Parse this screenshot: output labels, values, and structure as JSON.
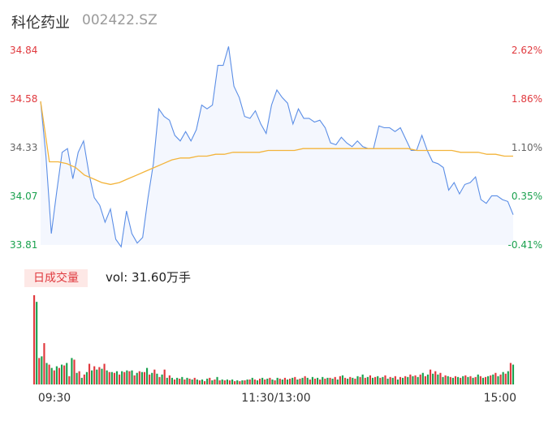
{
  "header": {
    "name": "科伦药业",
    "code": "002422.SZ"
  },
  "volume_panel": {
    "badge": "日成交量",
    "vol_text": "vol: 31.60万手"
  },
  "chart_data": {
    "type": "line",
    "price_axis": {
      "left_labels": [
        "34.84",
        "34.58",
        "34.33",
        "34.07",
        "33.81"
      ],
      "right_labels": [
        "2.62%",
        "1.86%",
        "1.10%",
        "0.35%",
        "-0.41%"
      ],
      "min": 33.81,
      "max": 34.84
    },
    "x_labels": [
      "09:30",
      "11:30/13:00",
      "15:00"
    ],
    "series": [
      {
        "type": "line",
        "color": "#5b8ee6",
        "values": [
          34.57,
          34.28,
          33.87,
          34.09,
          34.3,
          34.32,
          34.16,
          34.3,
          34.36,
          34.19,
          34.06,
          34.02,
          33.93,
          34.0,
          33.84,
          33.8,
          33.99,
          33.87,
          33.82,
          33.85,
          34.06,
          34.24,
          34.53,
          34.49,
          34.47,
          34.39,
          34.36,
          34.41,
          34.36,
          34.42,
          34.55,
          34.53,
          34.55,
          34.76,
          34.76,
          34.86,
          34.65,
          34.59,
          34.49,
          34.48,
          34.52,
          34.45,
          34.4,
          34.55,
          34.63,
          34.59,
          34.56,
          34.45,
          34.53,
          34.48,
          34.48,
          34.46,
          34.47,
          34.43,
          34.35,
          34.34,
          34.38,
          34.35,
          34.33,
          34.36,
          34.33,
          34.32,
          34.32,
          34.44,
          34.43,
          34.43,
          34.41,
          34.43,
          34.37,
          34.31,
          34.31,
          34.39,
          34.31,
          34.25,
          34.24,
          34.22,
          34.1,
          34.14,
          34.08,
          34.13,
          34.14,
          34.17,
          34.05,
          34.03,
          34.07,
          34.07,
          34.05,
          34.04,
          33.97
        ]
      },
      {
        "type": "line",
        "color": "#f3b43b",
        "values": [
          34.57,
          34.25,
          34.25,
          34.24,
          34.22,
          34.18,
          34.16,
          34.14,
          34.13,
          34.14,
          34.16,
          34.18,
          34.2,
          34.22,
          34.24,
          34.26,
          34.27,
          34.27,
          34.28,
          34.28,
          34.29,
          34.29,
          34.3,
          34.3,
          34.3,
          34.3,
          34.31,
          34.31,
          34.31,
          34.31,
          34.32,
          34.32,
          34.32,
          34.32,
          34.32,
          34.32,
          34.32,
          34.32,
          34.32,
          34.32,
          34.32,
          34.32,
          34.32,
          34.31,
          34.31,
          34.31,
          34.31,
          34.31,
          34.3,
          34.3,
          34.3,
          34.29,
          34.29,
          34.28,
          34.28
        ]
      }
    ],
    "volume": {
      "colors": {
        "up": "#e0393e",
        "down": "#1aa14e"
      },
      "bars": [
        [
          108,
          0
        ],
        [
          100,
          1
        ],
        [
          32,
          0
        ],
        [
          34,
          1
        ],
        [
          50,
          0
        ],
        [
          26,
          1
        ],
        [
          24,
          0
        ],
        [
          20,
          1
        ],
        [
          17,
          0
        ],
        [
          22,
          1
        ],
        [
          20,
          0
        ],
        [
          24,
          1
        ],
        [
          23,
          0
        ],
        [
          26,
          1
        ],
        [
          10,
          0
        ],
        [
          32,
          1
        ],
        [
          30,
          0
        ],
        [
          14,
          1
        ],
        [
          16,
          0
        ],
        [
          8,
          1
        ],
        [
          12,
          0
        ],
        [
          15,
          1
        ],
        [
          25,
          0
        ],
        [
          17,
          1
        ],
        [
          22,
          0
        ],
        [
          18,
          1
        ],
        [
          21,
          0
        ],
        [
          19,
          1
        ],
        [
          25,
          0
        ],
        [
          17,
          1
        ],
        [
          15,
          0
        ],
        [
          15,
          1
        ],
        [
          14,
          0
        ],
        [
          16,
          1
        ],
        [
          12,
          0
        ],
        [
          16,
          1
        ],
        [
          15,
          0
        ],
        [
          17,
          1
        ],
        [
          16,
          0
        ],
        [
          17,
          1
        ],
        [
          11,
          0
        ],
        [
          14,
          1
        ],
        [
          16,
          0
        ],
        [
          15,
          1
        ],
        [
          15,
          0
        ],
        [
          20,
          1
        ],
        [
          12,
          0
        ],
        [
          14,
          1
        ],
        [
          18,
          0
        ],
        [
          13,
          1
        ],
        [
          9,
          0
        ],
        [
          12,
          1
        ],
        [
          18,
          0
        ],
        [
          8,
          1
        ],
        [
          11,
          0
        ],
        [
          8,
          1
        ],
        [
          6,
          0
        ],
        [
          8,
          1
        ],
        [
          7,
          0
        ],
        [
          9,
          1
        ],
        [
          6,
          0
        ],
        [
          8,
          1
        ],
        [
          7,
          0
        ],
        [
          6,
          1
        ],
        [
          8,
          0
        ],
        [
          6,
          1
        ],
        [
          5,
          0
        ],
        [
          6,
          1
        ],
        [
          4,
          0
        ],
        [
          7,
          1
        ],
        [
          8,
          0
        ],
        [
          5,
          1
        ],
        [
          6,
          0
        ],
        [
          9,
          1
        ],
        [
          5,
          0
        ],
        [
          6,
          1
        ],
        [
          5,
          0
        ],
        [
          6,
          1
        ],
        [
          5,
          0
        ],
        [
          6,
          1
        ],
        [
          4,
          0
        ],
        [
          5,
          1
        ],
        [
          4,
          0
        ],
        [
          5,
          1
        ],
        [
          5,
          0
        ],
        [
          6,
          1
        ],
        [
          6,
          0
        ],
        [
          8,
          1
        ],
        [
          6,
          0
        ],
        [
          5,
          1
        ],
        [
          7,
          0
        ],
        [
          8,
          1
        ],
        [
          6,
          0
        ],
        [
          7,
          1
        ],
        [
          8,
          0
        ],
        [
          6,
          1
        ],
        [
          5,
          0
        ],
        [
          8,
          1
        ],
        [
          7,
          0
        ],
        [
          6,
          1
        ],
        [
          8,
          0
        ],
        [
          6,
          1
        ],
        [
          7,
          0
        ],
        [
          8,
          1
        ],
        [
          9,
          0
        ],
        [
          6,
          1
        ],
        [
          7,
          0
        ],
        [
          8,
          1
        ],
        [
          10,
          0
        ],
        [
          8,
          1
        ],
        [
          6,
          0
        ],
        [
          9,
          1
        ],
        [
          7,
          0
        ],
        [
          8,
          1
        ],
        [
          6,
          0
        ],
        [
          9,
          1
        ],
        [
          7,
          0
        ],
        [
          8,
          1
        ],
        [
          8,
          0
        ],
        [
          7,
          1
        ],
        [
          9,
          0
        ],
        [
          6,
          1
        ],
        [
          10,
          0
        ],
        [
          11,
          1
        ],
        [
          8,
          0
        ],
        [
          7,
          1
        ],
        [
          9,
          0
        ],
        [
          8,
          1
        ],
        [
          7,
          0
        ],
        [
          10,
          1
        ],
        [
          9,
          0
        ],
        [
          12,
          1
        ],
        [
          8,
          0
        ],
        [
          9,
          1
        ],
        [
          11,
          0
        ],
        [
          8,
          1
        ],
        [
          9,
          0
        ],
        [
          10,
          1
        ],
        [
          8,
          0
        ],
        [
          9,
          1
        ],
        [
          11,
          0
        ],
        [
          7,
          1
        ],
        [
          9,
          0
        ],
        [
          8,
          1
        ],
        [
          10,
          0
        ],
        [
          6,
          1
        ],
        [
          9,
          0
        ],
        [
          8,
          1
        ],
        [
          10,
          0
        ],
        [
          9,
          1
        ],
        [
          12,
          0
        ],
        [
          10,
          1
        ],
        [
          11,
          0
        ],
        [
          9,
          1
        ],
        [
          12,
          0
        ],
        [
          14,
          1
        ],
        [
          10,
          0
        ],
        [
          12,
          1
        ],
        [
          18,
          0
        ],
        [
          13,
          1
        ],
        [
          16,
          0
        ],
        [
          12,
          1
        ],
        [
          14,
          0
        ],
        [
          9,
          1
        ],
        [
          11,
          0
        ],
        [
          10,
          1
        ],
        [
          9,
          0
        ],
        [
          8,
          1
        ],
        [
          10,
          0
        ],
        [
          9,
          1
        ],
        [
          8,
          0
        ],
        [
          10,
          1
        ],
        [
          11,
          0
        ],
        [
          9,
          1
        ],
        [
          10,
          0
        ],
        [
          8,
          1
        ],
        [
          9,
          0
        ],
        [
          12,
          1
        ],
        [
          10,
          0
        ],
        [
          8,
          1
        ],
        [
          9,
          0
        ],
        [
          10,
          1
        ],
        [
          11,
          0
        ],
        [
          12,
          1
        ],
        [
          14,
          0
        ],
        [
          10,
          1
        ],
        [
          12,
          0
        ],
        [
          15,
          1
        ],
        [
          13,
          0
        ],
        [
          16,
          1
        ],
        [
          26,
          0
        ],
        [
          24,
          1
        ]
      ]
    }
  }
}
